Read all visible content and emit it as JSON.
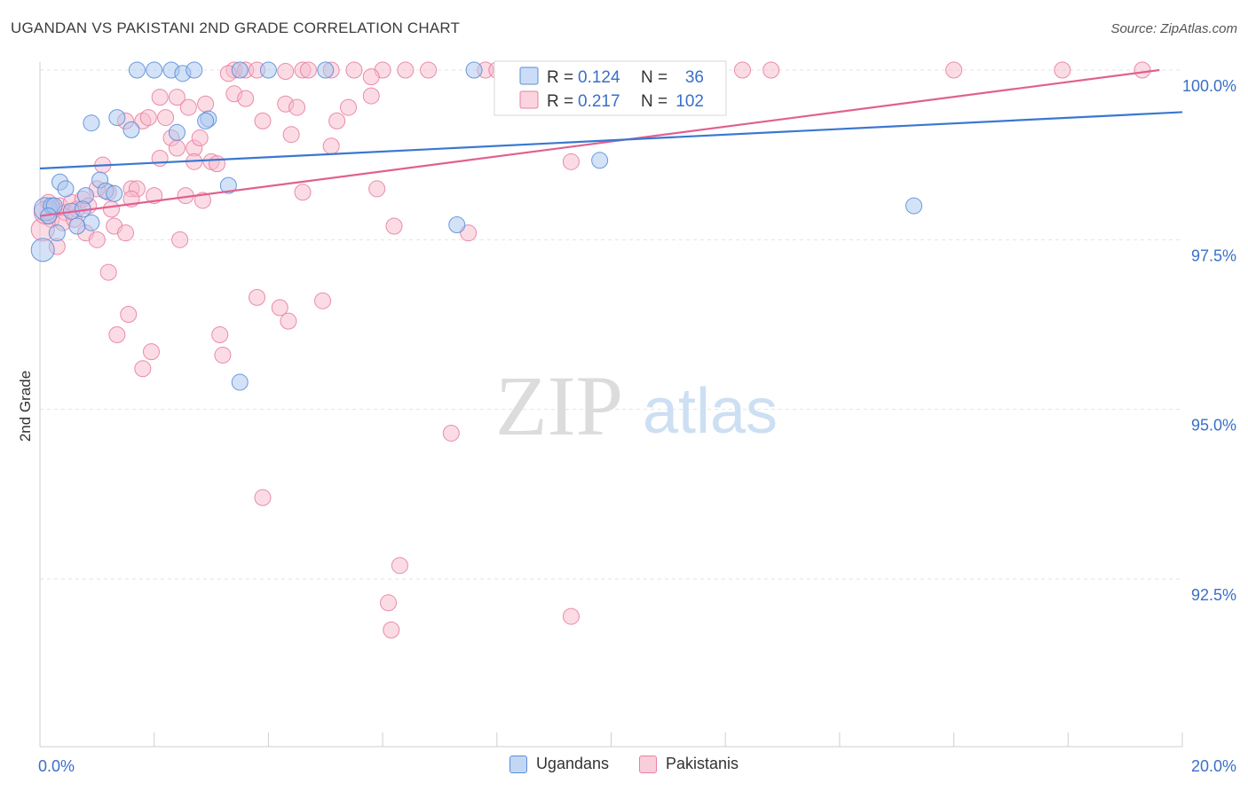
{
  "header": {
    "title": "UGANDAN VS PAKISTANI 2ND GRADE CORRELATION CHART",
    "source": "Source: ZipAtlas.com"
  },
  "watermark": {
    "zip": "ZIP",
    "atlas": "atlas"
  },
  "stats_legend": {
    "rows": [
      {
        "r_label": "R =",
        "r_value": "0.124",
        "n_label": "N =",
        "n_value": "36"
      },
      {
        "r_label": "R =",
        "r_value": "0.217",
        "n_label": "N =",
        "n_value": "102"
      }
    ]
  },
  "bottom_legend": {
    "items": [
      "Ugandans",
      "Pakistanis"
    ]
  },
  "colors": {
    "ugandans_fill": "#a9c6f0",
    "ugandans_stroke": "#5b8ed8",
    "ugandans_line": "#3a78d0",
    "pakistanis_fill": "#f7b9cc",
    "pakistanis_stroke": "#e880a2",
    "pakistanis_line": "#e06090",
    "value_text": "#3a6fc8"
  },
  "chart_data": {
    "type": "scatter",
    "title": "UGANDAN VS PAKISTANI 2ND GRADE CORRELATION CHART",
    "xlabel": "",
    "ylabel": "2nd Grade",
    "xlim": [
      0,
      20
    ],
    "ylim": [
      90.3,
      100.25
    ],
    "x_tick_labels": [
      {
        "value": 0,
        "label": "0.0%"
      },
      {
        "value": 20,
        "label": "20.0%"
      }
    ],
    "y_tick_labels": [
      {
        "value": 100,
        "label": "100.0%"
      },
      {
        "value": 97.5,
        "label": "97.5%"
      },
      {
        "value": 95,
        "label": "95.0%"
      },
      {
        "value": 92.5,
        "label": "92.5%"
      }
    ],
    "grid": true,
    "series": [
      {
        "name": "Ugandans",
        "r": 0.124,
        "n": 36,
        "trend": {
          "x": [
            0,
            20
          ],
          "y": [
            98.55,
            99.38
          ]
        },
        "points": [
          [
            1.7,
            100
          ],
          [
            2.0,
            100
          ],
          [
            2.3,
            100
          ],
          [
            2.5,
            99.95
          ],
          [
            2.7,
            100
          ],
          [
            3.5,
            100
          ],
          [
            4.0,
            100
          ],
          [
            5.0,
            100
          ],
          [
            7.6,
            100
          ],
          [
            0.9,
            99.22
          ],
          [
            1.35,
            99.3
          ],
          [
            1.6,
            99.12
          ],
          [
            2.4,
            99.08
          ],
          [
            2.95,
            99.28
          ],
          [
            2.9,
            99.25
          ],
          [
            0.35,
            98.35
          ],
          [
            0.45,
            98.25
          ],
          [
            0.8,
            98.15
          ],
          [
            1.05,
            98.38
          ],
          [
            1.15,
            98.22
          ],
          [
            1.3,
            98.18
          ],
          [
            0.1,
            97.95
          ],
          [
            0.2,
            98.0
          ],
          [
            0.55,
            97.92
          ],
          [
            0.75,
            97.95
          ],
          [
            0.9,
            97.75
          ],
          [
            0.3,
            97.6
          ],
          [
            0.05,
            97.35
          ],
          [
            3.3,
            98.3
          ],
          [
            7.3,
            97.72
          ],
          [
            9.8,
            98.67
          ],
          [
            15.3,
            98.0
          ],
          [
            3.5,
            95.4
          ],
          [
            0.25,
            98.0
          ],
          [
            0.65,
            97.7
          ],
          [
            0.15,
            97.85
          ]
        ]
      },
      {
        "name": "Pakistanis",
        "r": 0.217,
        "n": 102,
        "trend": {
          "x": [
            0,
            19.6
          ],
          "y": [
            97.85,
            100.0
          ]
        },
        "points": [
          [
            3.4,
            100
          ],
          [
            3.6,
            100
          ],
          [
            3.8,
            100
          ],
          [
            4.6,
            100
          ],
          [
            4.7,
            100
          ],
          [
            5.1,
            100
          ],
          [
            5.5,
            100
          ],
          [
            6.0,
            100
          ],
          [
            6.4,
            100
          ],
          [
            6.8,
            100
          ],
          [
            7.8,
            100
          ],
          [
            8.0,
            100
          ],
          [
            8.2,
            100
          ],
          [
            8.5,
            100
          ],
          [
            8.9,
            100
          ],
          [
            9.3,
            100
          ],
          [
            11.5,
            100
          ],
          [
            12.3,
            100
          ],
          [
            12.8,
            100
          ],
          [
            16.0,
            100
          ],
          [
            17.9,
            100
          ],
          [
            19.3,
            100
          ],
          [
            4.3,
            99.98
          ],
          [
            3.3,
            99.95
          ],
          [
            5.8,
            99.9
          ],
          [
            2.1,
            99.6
          ],
          [
            2.4,
            99.6
          ],
          [
            2.6,
            99.45
          ],
          [
            2.9,
            99.5
          ],
          [
            3.4,
            99.65
          ],
          [
            3.6,
            99.58
          ],
          [
            4.3,
            99.5
          ],
          [
            4.5,
            99.45
          ],
          [
            5.4,
            99.45
          ],
          [
            5.8,
            99.62
          ],
          [
            1.5,
            99.25
          ],
          [
            1.8,
            99.25
          ],
          [
            1.9,
            99.3
          ],
          [
            2.2,
            99.3
          ],
          [
            3.9,
            99.25
          ],
          [
            5.2,
            99.25
          ],
          [
            2.3,
            99.0
          ],
          [
            2.4,
            98.85
          ],
          [
            2.7,
            98.85
          ],
          [
            2.8,
            99.0
          ],
          [
            4.4,
            99.05
          ],
          [
            5.1,
            98.88
          ],
          [
            1.1,
            98.6
          ],
          [
            2.1,
            98.7
          ],
          [
            2.7,
            98.65
          ],
          [
            3.0,
            98.65
          ],
          [
            3.1,
            98.62
          ],
          [
            1.6,
            98.25
          ],
          [
            1.7,
            98.25
          ],
          [
            2.0,
            98.15
          ],
          [
            2.55,
            98.15
          ],
          [
            2.85,
            98.08
          ],
          [
            1.2,
            98.2
          ],
          [
            1.6,
            98.1
          ],
          [
            4.6,
            98.2
          ],
          [
            5.9,
            98.25
          ],
          [
            9.3,
            98.65
          ],
          [
            0.15,
            98.05
          ],
          [
            0.25,
            97.95
          ],
          [
            0.35,
            98.0
          ],
          [
            0.45,
            97.9
          ],
          [
            0.55,
            98.05
          ],
          [
            0.65,
            97.95
          ],
          [
            0.75,
            98.1
          ],
          [
            0.85,
            98.0
          ],
          [
            0.2,
            97.8
          ],
          [
            0.4,
            97.75
          ],
          [
            0.6,
            97.8
          ],
          [
            0.8,
            97.6
          ],
          [
            1.0,
            97.5
          ],
          [
            1.3,
            97.7
          ],
          [
            1.5,
            97.6
          ],
          [
            0.3,
            97.4
          ],
          [
            0.05,
            97.65
          ],
          [
            0.1,
            97.9
          ],
          [
            2.45,
            97.5
          ],
          [
            6.2,
            97.7
          ],
          [
            7.5,
            97.6
          ],
          [
            1.25,
            97.95
          ],
          [
            1.0,
            98.25
          ],
          [
            1.2,
            97.02
          ],
          [
            1.55,
            96.4
          ],
          [
            1.35,
            96.1
          ],
          [
            1.95,
            95.85
          ],
          [
            1.8,
            95.6
          ],
          [
            3.15,
            96.1
          ],
          [
            3.2,
            95.8
          ],
          [
            3.8,
            96.65
          ],
          [
            4.2,
            96.5
          ],
          [
            4.35,
            96.3
          ],
          [
            4.95,
            96.6
          ],
          [
            7.2,
            94.65
          ],
          [
            3.9,
            93.7
          ],
          [
            6.3,
            92.7
          ],
          [
            6.1,
            92.15
          ],
          [
            6.15,
            91.75
          ],
          [
            9.3,
            91.95
          ]
        ]
      }
    ]
  }
}
